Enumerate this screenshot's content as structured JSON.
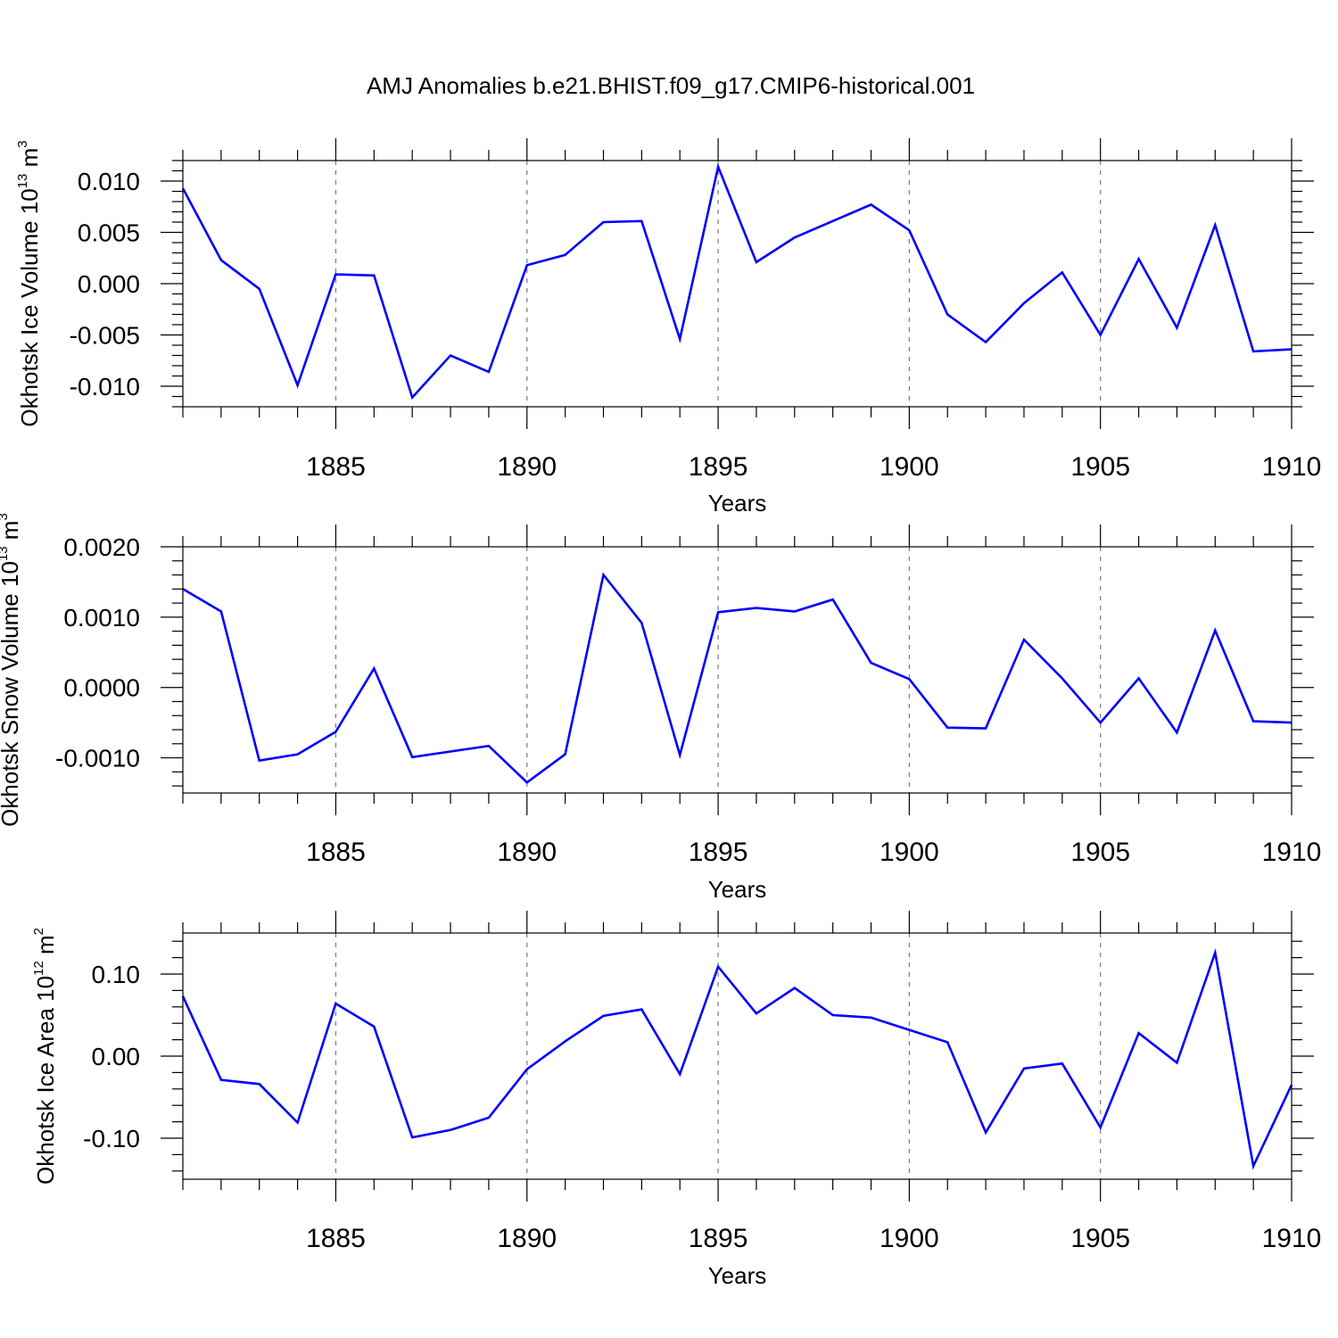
{
  "chart_data": {
    "title": "AMJ Anomalies b.e21.BHIST.f09_g17.CMIP6-historical.001",
    "type": "line",
    "line_color": "#0000ff",
    "x": [
      1881,
      1882,
      1883,
      1884,
      1885,
      1886,
      1887,
      1888,
      1889,
      1890,
      1891,
      1892,
      1893,
      1894,
      1895,
      1896,
      1897,
      1898,
      1899,
      1900,
      1901,
      1902,
      1903,
      1904,
      1905,
      1906,
      1907,
      1908,
      1909,
      1910
    ],
    "xlim": [
      1881,
      1910
    ],
    "xticks": [
      1885,
      1890,
      1895,
      1900,
      1905,
      1910
    ],
    "xlabel": "Years",
    "panels": [
      {
        "ylabel_main": "Okhotsk Ice Volume 10",
        "ylabel_exp": "13",
        "ylabel_unit": " m",
        "ylabel_unit_exp": "3",
        "ylim": [
          -0.012,
          0.012
        ],
        "yticks": [
          -0.01,
          -0.005,
          0.0,
          0.005,
          0.01
        ],
        "ytick_labels": [
          "-0.010",
          "-0.005",
          "0.000",
          "0.005",
          "0.010"
        ],
        "values": [
          0.0093,
          0.0023,
          -0.0005,
          -0.0099,
          0.0009,
          0.0008,
          -0.0111,
          -0.007,
          -0.0086,
          0.0018,
          0.0028,
          0.006,
          0.0061,
          -0.0054,
          0.0114,
          0.0021,
          0.0045,
          0.0061,
          0.0077,
          0.0052,
          -0.003,
          -0.0057,
          -0.0019,
          0.0011,
          -0.005,
          0.0024,
          -0.0043,
          0.0057,
          -0.0066,
          -0.0064
        ]
      },
      {
        "ylabel_main": "Okhotsk Snow Volume 10",
        "ylabel_exp": "13",
        "ylabel_unit": " m",
        "ylabel_unit_exp": "3",
        "ylim": [
          -0.0015,
          0.002
        ],
        "yticks": [
          -0.001,
          0.0,
          0.001,
          0.002
        ],
        "ytick_labels": [
          "-0.0010",
          "0.0000",
          "0.0010",
          "0.0020"
        ],
        "values": [
          0.0014,
          0.00108,
          -0.00104,
          -0.00095,
          -0.00063,
          0.00027,
          -0.00099,
          -0.00091,
          -0.00083,
          -0.00135,
          -0.00095,
          0.0016,
          0.00092,
          -0.00096,
          0.00107,
          0.00113,
          0.00108,
          0.00125,
          0.00035,
          0.00012,
          -0.00057,
          -0.00058,
          0.00068,
          0.00013,
          -0.0005,
          0.00013,
          -0.00064,
          0.00081,
          -0.00048,
          -0.0005
        ]
      },
      {
        "ylabel_main": "Okhotsk Ice Area 10",
        "ylabel_exp": "12",
        "ylabel_unit": " m",
        "ylabel_unit_exp": "2",
        "ylim": [
          -0.15,
          0.15
        ],
        "yticks": [
          -0.1,
          0.0,
          0.1
        ],
        "ytick_labels": [
          "-0.10",
          "0.00",
          "0.10"
        ],
        "values": [
          0.073,
          -0.029,
          -0.034,
          -0.081,
          0.064,
          0.036,
          -0.099,
          -0.09,
          -0.075,
          -0.016,
          0.018,
          0.049,
          0.057,
          -0.022,
          0.109,
          0.052,
          0.083,
          0.05,
          0.047,
          0.032,
          0.017,
          -0.093,
          -0.015,
          -0.009,
          -0.087,
          0.028,
          -0.008,
          0.126,
          -0.134,
          -0.035
        ]
      }
    ]
  }
}
